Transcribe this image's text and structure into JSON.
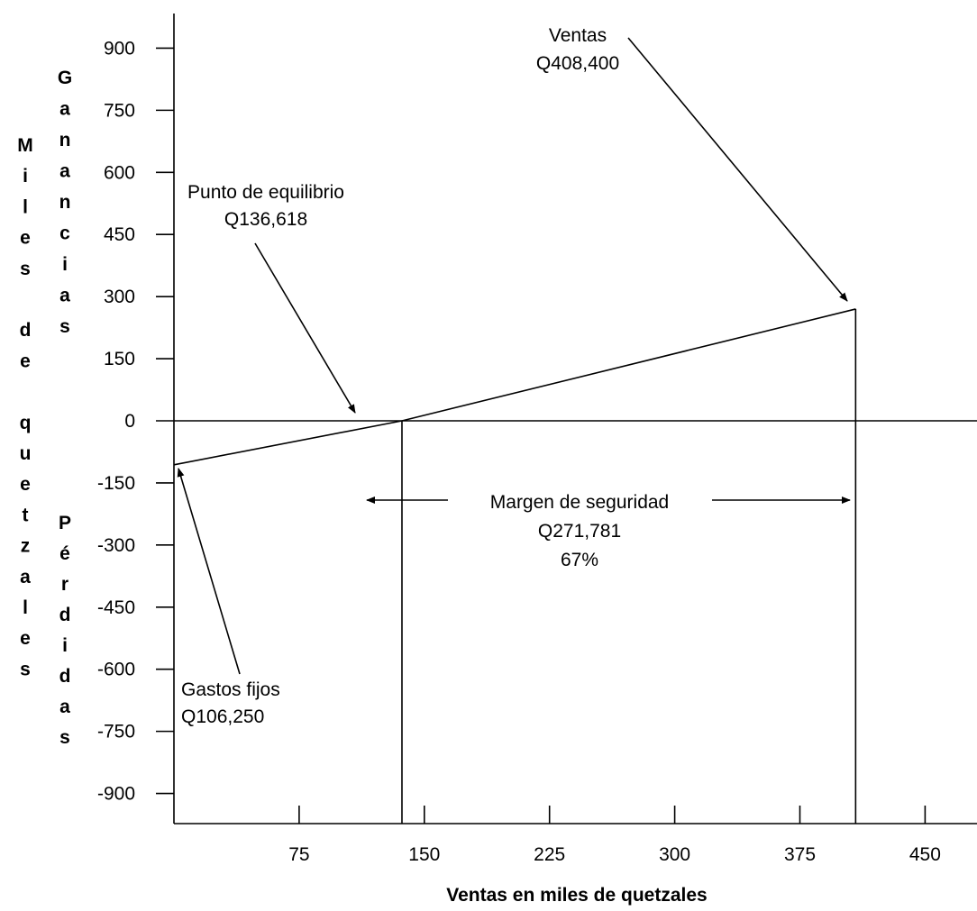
{
  "chart_data": {
    "type": "line",
    "xlabel": "Ventas en miles de quetzales",
    "ylabel": "Miles de quetzales",
    "y_upper_label": "Ganancias",
    "y_lower_label": "Pérdidas",
    "xlim": [
      0,
      475
    ],
    "ylim": [
      -1000,
      1000
    ],
    "x_ticks": [
      75,
      150,
      225,
      300,
      375,
      450
    ],
    "y_ticks": [
      900,
      750,
      600,
      450,
      300,
      150,
      0,
      -150,
      -300,
      -450,
      -600,
      -750,
      -900
    ],
    "grid": false,
    "series": [
      {
        "x": [
          0,
          136.6,
          408.4
        ],
        "y": [
          -106.25,
          0,
          270
        ]
      }
    ],
    "vertical_lines": [
      136.6,
      408.4
    ],
    "annotations": {
      "ventas": {
        "lines": [
          "Ventas",
          "Q408,400"
        ]
      },
      "equilibrio": {
        "lines": [
          "Punto de equilibrio",
          "Q136,618"
        ]
      },
      "gastos": {
        "lines": [
          "Gastos fijos",
          "Q106,250"
        ]
      },
      "margen": {
        "lines": [
          "Margen de seguridad",
          "Q271,781",
          "67%"
        ]
      }
    }
  }
}
